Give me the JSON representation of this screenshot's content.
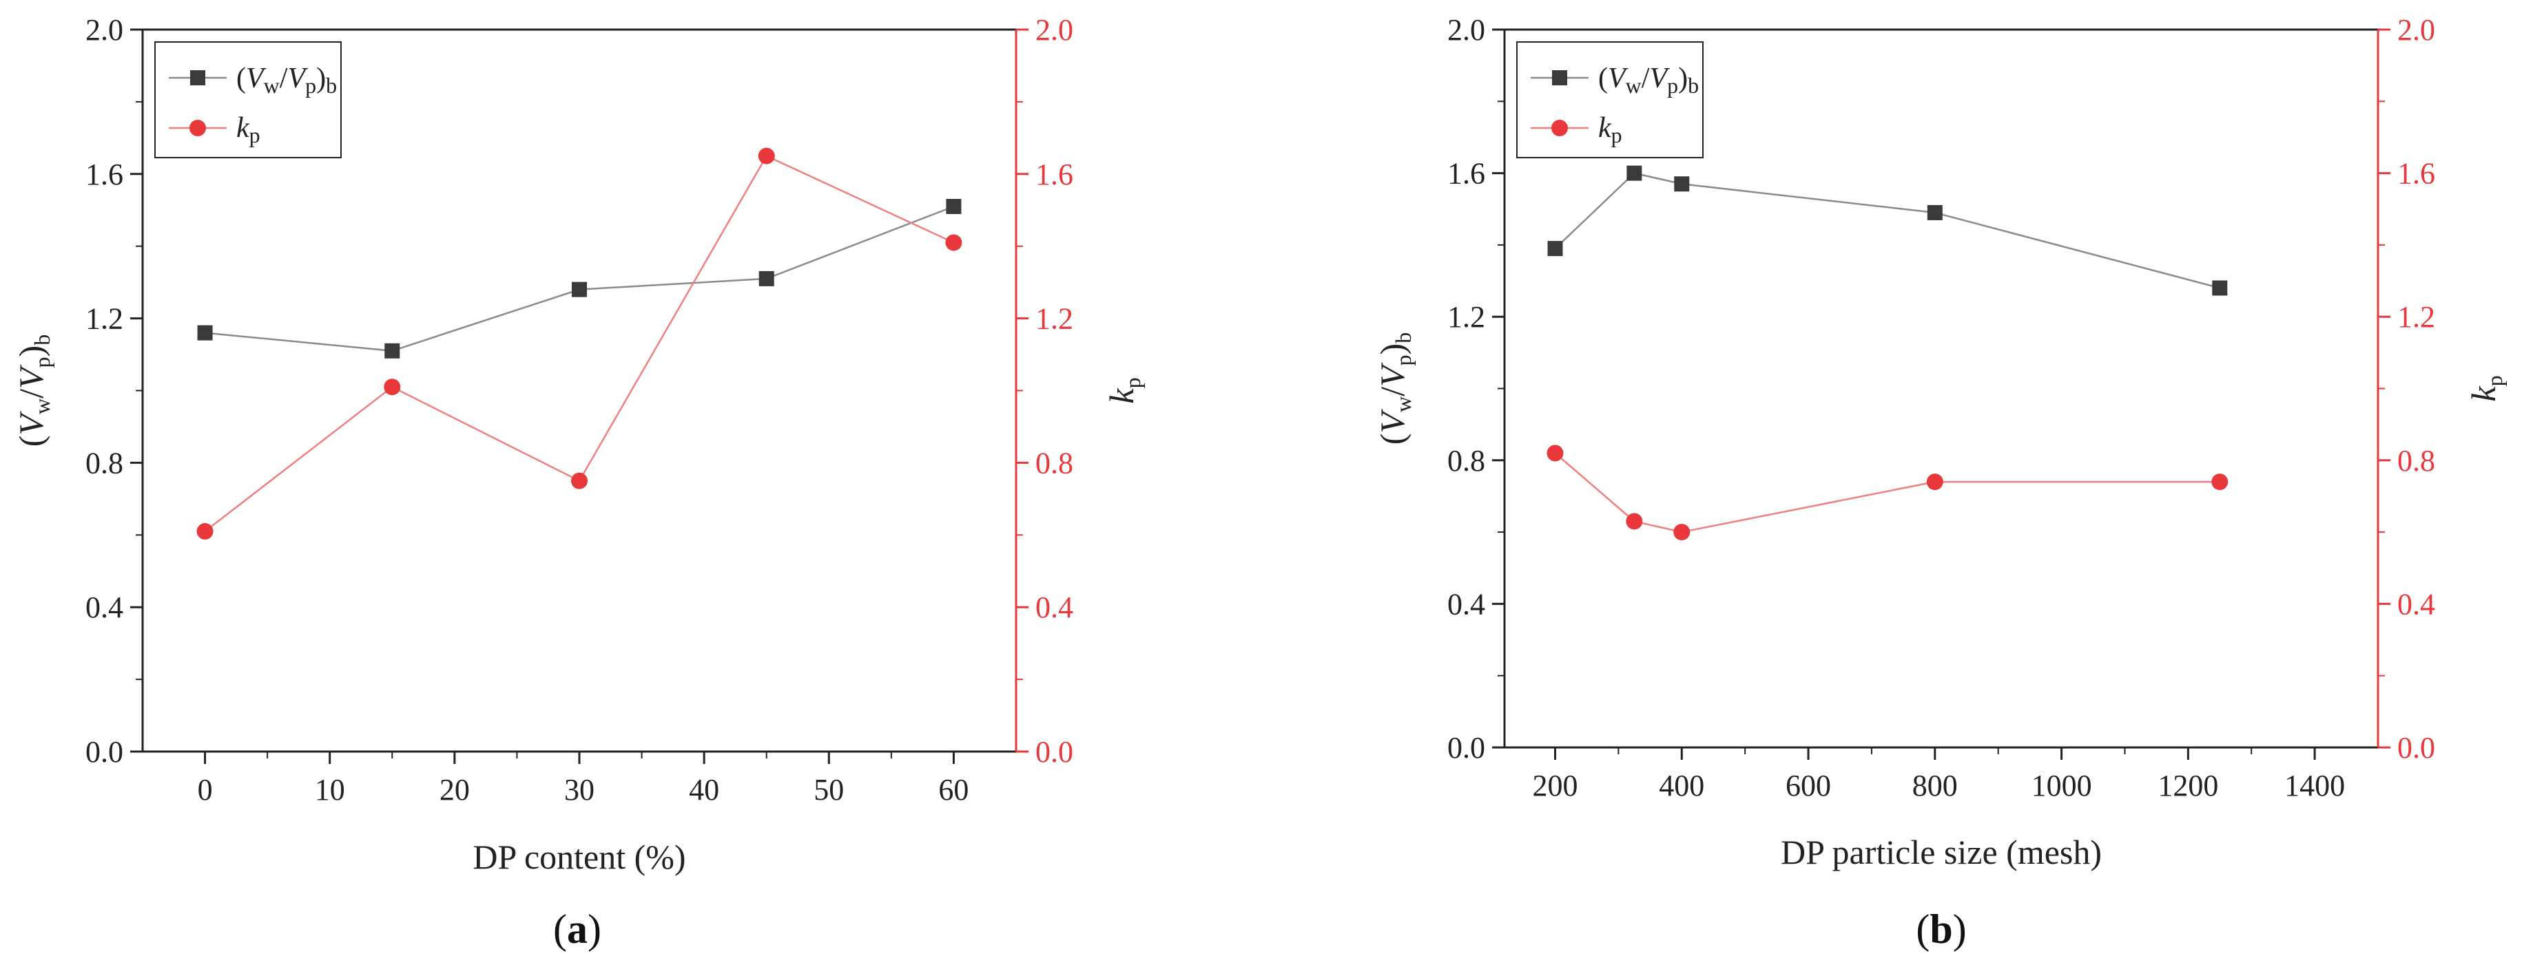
{
  "colors": {
    "series_black": "#3a3a3a",
    "series_black_line": "#8a8a8a",
    "series_red": "#e8383b",
    "series_red_line": "#f08080",
    "axis": "#222222"
  },
  "chart_data": [
    {
      "type": "line",
      "panel_label_open": "(",
      "panel_label_letter": "a",
      "panel_label_close": ")",
      "xlabel": "DP content (%)",
      "ylabel_left": {
        "open": "(",
        "V": "V",
        "w": "w",
        "slash": "/",
        "V2": "V",
        "p": "p",
        "close": ")",
        "b": "b"
      },
      "ylabel_right": {
        "k": "k",
        "p": "p"
      },
      "xlim": [
        -5,
        65
      ],
      "xticks": [
        0,
        10,
        20,
        30,
        40,
        50,
        60
      ],
      "xtick_labels": [
        "0",
        "10",
        "20",
        "30",
        "40",
        "50",
        "60"
      ],
      "ylim_left": [
        0,
        2.0
      ],
      "yticks_left": [
        0,
        0.4,
        0.8,
        1.2,
        1.6,
        2.0
      ],
      "ytick_labels_left": [
        "0.0",
        "0.4",
        "0.8",
        "1.2",
        "1.6",
        "2.0"
      ],
      "ylim_right": [
        0,
        2.0
      ],
      "yticks_right": [
        0,
        0.4,
        0.8,
        1.2,
        1.6,
        2.0
      ],
      "ytick_labels_right": [
        "0.0",
        "0.4",
        "0.8",
        "1.2",
        "1.6",
        "2.0"
      ],
      "legend_position": "top-left",
      "series": [
        {
          "name": "(Vw/Vp)b",
          "axis": "left",
          "marker": "square",
          "x": [
            0,
            15,
            30,
            45,
            60
          ],
          "values": [
            1.16,
            1.11,
            1.28,
            1.31,
            1.51
          ]
        },
        {
          "name": "kp",
          "axis": "right",
          "marker": "circle",
          "x": [
            0,
            15,
            30,
            45,
            60
          ],
          "values": [
            0.61,
            1.01,
            0.75,
            1.65,
            1.41
          ]
        }
      ]
    },
    {
      "type": "line",
      "panel_label_open": "(",
      "panel_label_letter": "b",
      "panel_label_close": ")",
      "xlabel": "DP particle size (mesh)",
      "ylabel_left": {
        "open": "(",
        "V": "V",
        "w": "w",
        "slash": "/",
        "V2": "V",
        "p": "p",
        "close": ")",
        "b": "b"
      },
      "ylabel_right": {
        "k": "k",
        "p": "p"
      },
      "xlim": [
        120,
        1500
      ],
      "xticks": [
        200,
        400,
        600,
        800,
        1000,
        1200,
        1400
      ],
      "xtick_labels": [
        "200",
        "400",
        "600",
        "800",
        "1000",
        "1200",
        "1400"
      ],
      "ylim_left": [
        0,
        2.0
      ],
      "yticks_left": [
        0,
        0.4,
        0.8,
        1.2,
        1.6,
        2.0
      ],
      "ytick_labels_left": [
        "0.0",
        "0.4",
        "0.8",
        "1.2",
        "1.6",
        "2.0"
      ],
      "ylim_right": [
        0,
        2.0
      ],
      "yticks_right": [
        0,
        0.4,
        0.8,
        1.2,
        1.6,
        2.0
      ],
      "ytick_labels_right": [
        "0.0",
        "0.4",
        "0.8",
        "1.2",
        "1.6",
        "2.0"
      ],
      "legend_position": "top-left",
      "series": [
        {
          "name": "(Vw/Vp)b",
          "axis": "left",
          "marker": "square",
          "x": [
            200,
            325,
            400,
            800,
            1250
          ],
          "values": [
            1.39,
            1.6,
            1.57,
            1.49,
            1.28
          ]
        },
        {
          "name": "kp",
          "axis": "right",
          "marker": "circle",
          "x": [
            200,
            325,
            400,
            800,
            1250
          ],
          "values": [
            0.82,
            0.63,
            0.6,
            0.74,
            0.74
          ]
        }
      ]
    }
  ]
}
